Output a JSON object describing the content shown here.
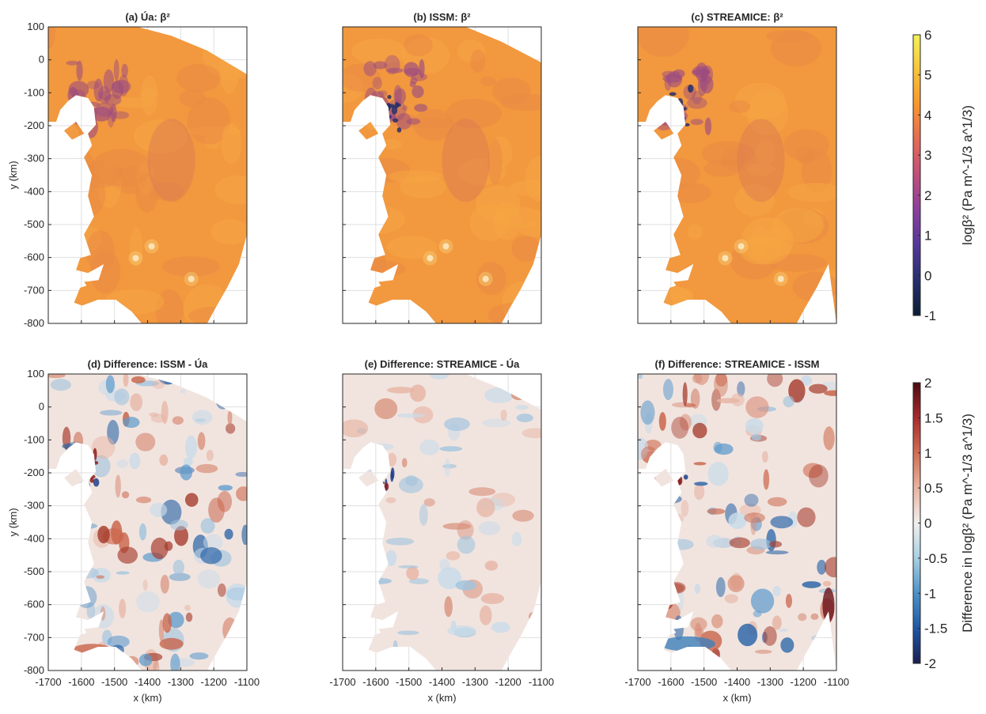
{
  "chart_data": [
    {
      "type": "heatmap",
      "panel": "a",
      "title": "(a) Úa: β²",
      "ylabel": "y (km)",
      "xlabel": "",
      "xlim": [
        -1700,
        -1100
      ],
      "ylim": [
        -800,
        100
      ],
      "y_ticks": [
        "100",
        "0",
        "-100",
        "-200",
        "-300",
        "-400",
        "-500",
        "-600",
        "-700",
        "-800"
      ],
      "x_ticks": [],
      "colorbar": "log_beta",
      "grid": true
    },
    {
      "type": "heatmap",
      "panel": "b",
      "title": "(b) ISSM: β²",
      "xlim": [
        -1700,
        -1100
      ],
      "ylim": [
        -800,
        100
      ],
      "colorbar": "log_beta",
      "grid": true
    },
    {
      "type": "heatmap",
      "panel": "c",
      "title": "(c) STREAMICE: β²",
      "xlim": [
        -1700,
        -1100
      ],
      "ylim": [
        -800,
        100
      ],
      "colorbar": "log_beta",
      "grid": true
    },
    {
      "type": "heatmap",
      "panel": "d",
      "title": "(d) Difference: ISSM - Úa",
      "ylabel": "y (km)",
      "xlabel": "x (km)",
      "xlim": [
        -1700,
        -1100
      ],
      "ylim": [
        -800,
        100
      ],
      "y_ticks": [
        "100",
        "0",
        "-100",
        "-200",
        "-300",
        "-400",
        "-500",
        "-600",
        "-700",
        "-800"
      ],
      "x_ticks": [
        "-1700",
        "-1600",
        "-1500",
        "-1400",
        "-1300",
        "-1200",
        "-1100"
      ],
      "colorbar": "difference",
      "grid": true
    },
    {
      "type": "heatmap",
      "panel": "e",
      "title": "(e) Difference: STREAMICE - Úa",
      "xlabel": "x (km)",
      "xlim": [
        -1700,
        -1100
      ],
      "ylim": [
        -800,
        100
      ],
      "x_ticks": [
        "-1700",
        "-1600",
        "-1500",
        "-1400",
        "-1300",
        "-1200",
        "-1100"
      ],
      "colorbar": "difference",
      "grid": true
    },
    {
      "type": "heatmap",
      "panel": "f",
      "title": "(f) Difference: STREAMICE - ISSM",
      "xlabel": "x (km)",
      "xlim": [
        -1700,
        -1100
      ],
      "ylim": [
        -800,
        100
      ],
      "x_ticks": [
        "-1700",
        "-1600",
        "-1500",
        "-1400",
        "-1300",
        "-1200",
        "-1100"
      ],
      "colorbar": "difference",
      "grid": true
    }
  ],
  "colorbars": {
    "log_beta": {
      "label": "logβ² (Pa m^-1/3 a^1/3)",
      "range": [
        -1,
        6
      ],
      "ticks": [
        "6",
        "5",
        "4",
        "3",
        "2",
        "1",
        "0",
        "-1"
      ],
      "colors": [
        "#0b1e33",
        "#262f6e",
        "#54379b",
        "#8a3f9b",
        "#c04f7d",
        "#e56a55",
        "#f7952f",
        "#f7c43a",
        "#f2f25a"
      ]
    },
    "difference": {
      "label": "Difference in logβ² (Pa m^-1/3 a^1/3)",
      "range": [
        -2,
        2
      ],
      "ticks": [
        "2",
        "1.5",
        "1",
        "0.5",
        "0",
        "-0.5",
        "-1",
        "-1.5",
        "-2"
      ],
      "colors": [
        "#1a1f4f",
        "#1f57a6",
        "#4d92c7",
        "#a8cfe2",
        "#f1efee",
        "#e8b4a0",
        "#d06e55",
        "#a82b2e",
        "#4b0a12"
      ]
    }
  },
  "field_colors": {
    "basal_main": "#f2983e",
    "basal_light": "#f6a544",
    "basal_purple": "#9a4a82",
    "basal_deep": "#1c2a6a",
    "diff_neutral": "#f1e4df",
    "diff_red": "#c9644a",
    "diff_blue": "#3f7fba"
  }
}
